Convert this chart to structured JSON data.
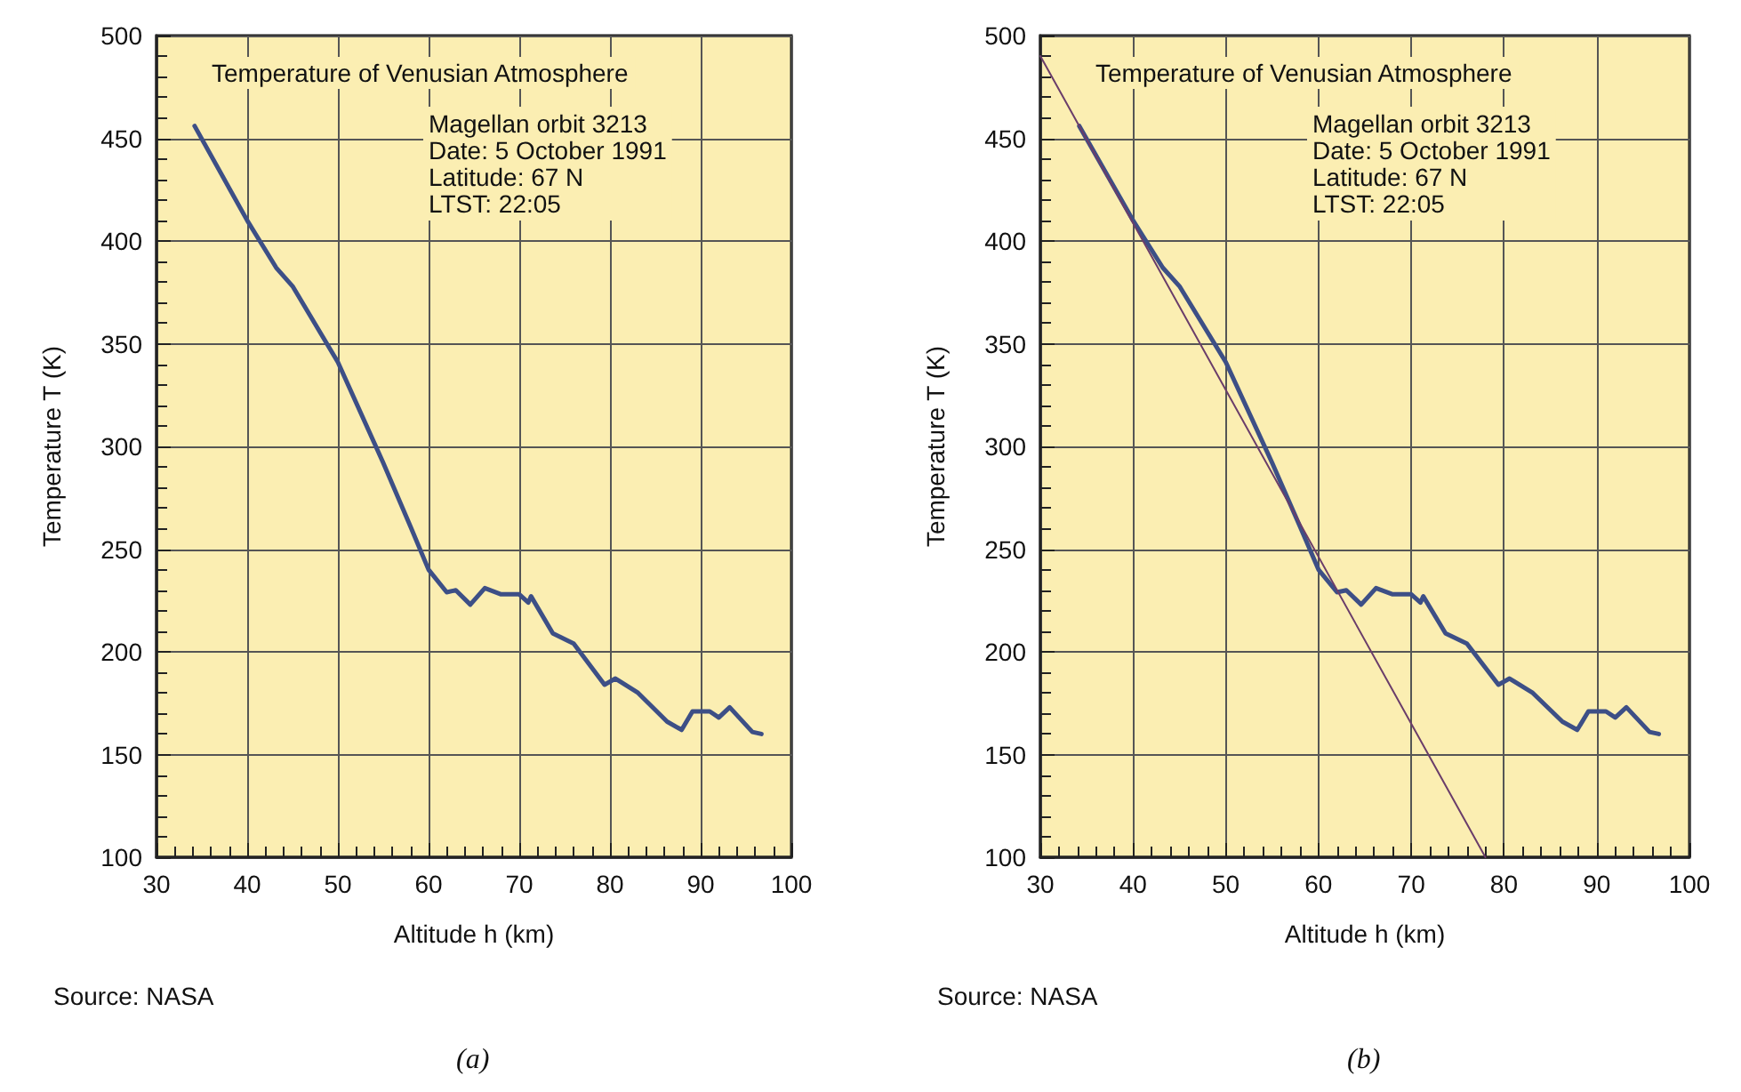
{
  "chart_data": [
    {
      "type": "line",
      "title": "Temperature of Venusian Atmosphere",
      "xlabel": "Altitude h (km)",
      "ylabel": "Temperature T (K)",
      "annotations": [
        "Magellan orbit 3213\nDate: 5 October 1991\nLatitude: 67 N\nLTST: 22:05",
        "Source: NASA",
        "(a)"
      ],
      "xlim": [
        30,
        100
      ],
      "xticks": [
        30,
        40,
        50,
        60,
        70,
        80,
        90,
        100
      ],
      "ylim": [
        100,
        500
      ],
      "yticks": [
        100,
        150,
        200,
        250,
        300,
        350,
        400,
        450,
        500
      ],
      "grid": true,
      "marker": "none",
      "line_style": "solid",
      "series": [
        {
          "color": "#3d4f86",
          "x": [
            34.2,
            40,
            43.2,
            45,
            50,
            55,
            58,
            60,
            62,
            63,
            64.6,
            66.2,
            68,
            70,
            71,
            71.3,
            73.7,
            76,
            79.4,
            80.6,
            83.1,
            86.3,
            87.9,
            89.1,
            91,
            92,
            93.2,
            95.7,
            96.7
          ],
          "values": [
            456,
            410,
            387,
            378,
            341,
            292,
            261,
            240,
            229,
            230,
            223,
            231,
            228,
            228,
            224,
            227,
            209,
            204,
            184,
            187,
            180,
            166,
            162,
            171,
            171,
            168,
            173,
            161,
            160
          ]
        }
      ]
    },
    {
      "type": "line",
      "title": "Temperature of Venusian Atmosphere",
      "xlabel": "Altitude h (km)",
      "ylabel": "Temperature T (K)",
      "annotations": [
        "Magellan orbit 3213\nDate: 5 October 1991\nLatitude: 67 N\nLTST: 22:05",
        "Source: NASA",
        "(b)"
      ],
      "xlim": [
        30,
        100
      ],
      "xticks": [
        30,
        40,
        50,
        60,
        70,
        80,
        90,
        100
      ],
      "ylim": [
        100,
        500
      ],
      "yticks": [
        100,
        150,
        200,
        250,
        300,
        350,
        400,
        450,
        500
      ],
      "grid": true,
      "marker": "none",
      "line_style": "solid",
      "series": [
        {
          "color": "#3d4f86",
          "x": [
            34.2,
            40,
            43.2,
            45,
            50,
            55,
            58,
            60,
            62,
            63,
            64.6,
            66.2,
            68,
            70,
            71,
            71.3,
            73.7,
            76,
            79.4,
            80.6,
            83.1,
            86.3,
            87.9,
            89.1,
            91,
            92,
            93.2,
            95.7,
            96.7
          ],
          "values": [
            456,
            410,
            387,
            378,
            341,
            292,
            261,
            240,
            229,
            230,
            223,
            231,
            228,
            228,
            224,
            227,
            209,
            204,
            184,
            187,
            180,
            166,
            162,
            171,
            171,
            168,
            173,
            161,
            160
          ]
        },
        {
          "color": "#6a3d6a",
          "x": [
            30,
            78
          ],
          "values": [
            490,
            100
          ]
        }
      ]
    }
  ]
}
